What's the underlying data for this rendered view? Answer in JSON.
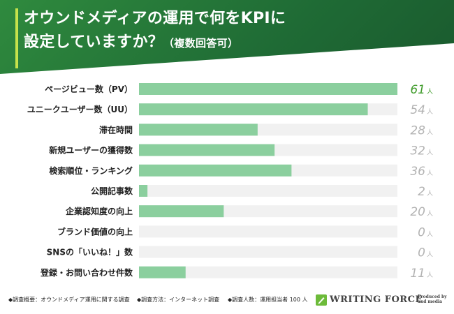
{
  "header": {
    "title_line1": "オウンドメディアの運用で何をKPIに",
    "title_line2": "設定していますか？",
    "title_sub": "（複数回答可）"
  },
  "chart_data": {
    "type": "bar",
    "orientation": "horizontal",
    "categories": [
      "ページビュー数（PV）",
      "ユニークユーザー数（UU）",
      "滞在時間",
      "新規ユーザーの獲得数",
      "検索順位・ランキング",
      "公開記事数",
      "企業認知度の向上",
      "ブランド価値の向上",
      "SNSの「いいね！」数",
      "登録・お問い合わせ件数"
    ],
    "values": [
      61,
      54,
      28,
      32,
      36,
      2,
      20,
      0,
      0,
      11
    ],
    "unit": "人",
    "xlim": [
      0,
      61
    ],
    "bar_color": "#8bcf9e",
    "track_color": "#f1f1f1",
    "highlight_color": "#3f9b2a",
    "value_color": "#b3b3b3"
  },
  "footer": {
    "note1": "◆調査概要：オウンドメディア運用に関する調査",
    "note2": "◆調査方法：インターネット調査",
    "note3": "◆調査人数：運用担当者 100 人",
    "brand_name": "WRITING FORCE",
    "brand_icon": "leaf-pen-icon",
    "produced_line1": "Produced by",
    "produced_line2": "and media"
  }
}
